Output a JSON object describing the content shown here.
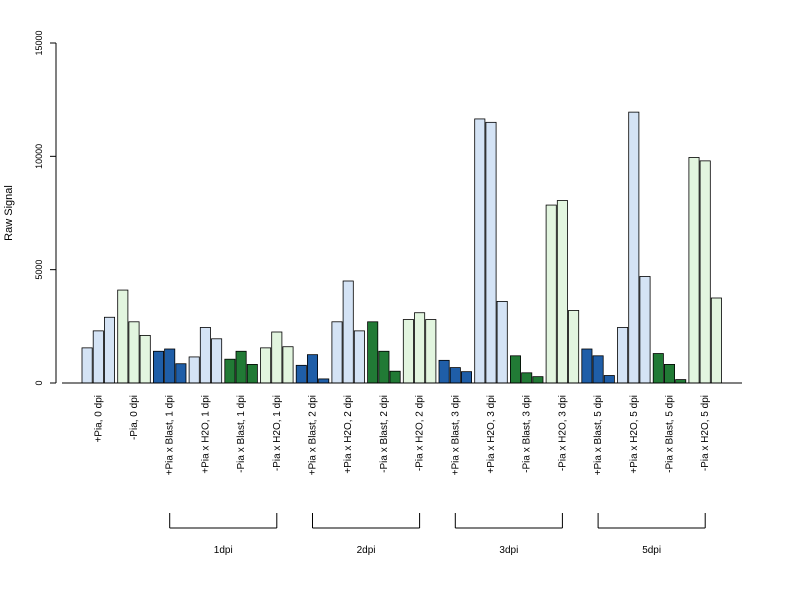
{
  "chart_data": {
    "type": "bar",
    "ylabel": "Raw Signal",
    "xlabel": "",
    "ylim": [
      0,
      15000
    ],
    "yticks": [
      0,
      5000,
      10000,
      15000
    ],
    "grid": false,
    "legend": "none",
    "colors": {
      "plus_pia": "#d4e3f5",
      "minus_pia": "#e2f5df",
      "plus_blast": "#1f5ea8",
      "minus_blast": "#217a35"
    },
    "categories": [
      {
        "label": "+Pia, 0 dpi",
        "color": "#d4e3f5",
        "values": [
          1550,
          2300,
          2900
        ]
      },
      {
        "label": "-Pia, 0 dpi",
        "color": "#e2f5df",
        "values": [
          4100,
          2700,
          2100
        ]
      },
      {
        "label": "+Pia x Blast, 1 dpi",
        "color": "#1f5ea8",
        "values": [
          1400,
          1500,
          850
        ]
      },
      {
        "label": "+Pia x H2O, 1 dpi",
        "color": "#d4e3f5",
        "values": [
          1150,
          2450,
          1950
        ]
      },
      {
        "label": "-Pia x Blast, 1 dpi",
        "color": "#217a35",
        "values": [
          1050,
          1400,
          820
        ]
      },
      {
        "label": "-Pia x H2O, 1 dpi",
        "color": "#e2f5df",
        "values": [
          1550,
          2250,
          1600
        ]
      },
      {
        "label": "+Pia x Blast, 2 dpi",
        "color": "#1f5ea8",
        "values": [
          780,
          1250,
          180
        ]
      },
      {
        "label": "+Pia x H2O, 2 dpi",
        "color": "#d4e3f5",
        "values": [
          2700,
          4500,
          2300
        ]
      },
      {
        "label": "-Pia x Blast, 2 dpi",
        "color": "#217a35",
        "values": [
          2700,
          1400,
          520
        ]
      },
      {
        "label": "-Pia x H2O, 2 dpi",
        "color": "#e2f5df",
        "values": [
          2800,
          3100,
          2800
        ]
      },
      {
        "label": "+Pia x Blast, 3 dpi",
        "color": "#1f5ea8",
        "values": [
          1000,
          680,
          500
        ]
      },
      {
        "label": "+Pia x H2O, 3 dpi",
        "color": "#d4e3f5",
        "values": [
          11650,
          11500,
          3600
        ]
      },
      {
        "label": "-Pia x Blast, 3 dpi",
        "color": "#217a35",
        "values": [
          1200,
          450,
          280
        ]
      },
      {
        "label": "-Pia x H2O, 3 dpi",
        "color": "#e2f5df",
        "values": [
          7850,
          8050,
          3200
        ]
      },
      {
        "label": "+Pia x Blast, 5 dpi",
        "color": "#1f5ea8",
        "values": [
          1500,
          1200,
          330
        ]
      },
      {
        "label": "+Pia x H2O, 5 dpi",
        "color": "#d4e3f5",
        "values": [
          2450,
          11950,
          4700
        ]
      },
      {
        "label": "-Pia x Blast, 5 dpi",
        "color": "#217a35",
        "values": [
          1300,
          820,
          150
        ]
      },
      {
        "label": "-Pia x H2O, 5 dpi",
        "color": "#e2f5df",
        "values": [
          9950,
          9800,
          3750
        ]
      }
    ],
    "groups": [
      {
        "label": "1dpi",
        "from": 2,
        "to": 5
      },
      {
        "label": "2dpi",
        "from": 6,
        "to": 9
      },
      {
        "label": "3dpi",
        "from": 10,
        "to": 13
      },
      {
        "label": "5dpi",
        "from": 14,
        "to": 17
      }
    ]
  }
}
